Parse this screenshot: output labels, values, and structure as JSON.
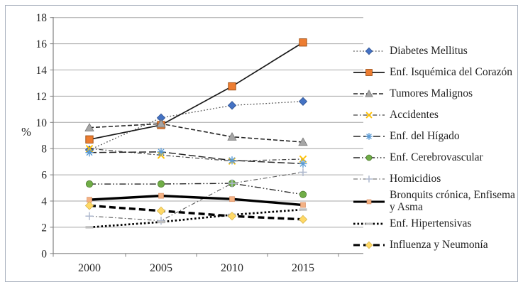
{
  "chart_data": {
    "type": "line",
    "title": "",
    "ylabel": "%",
    "xlabel": "",
    "ylim": [
      0,
      18
    ],
    "ytick_step": 2,
    "yticks": [
      0,
      2,
      4,
      6,
      8,
      10,
      12,
      14,
      16,
      18
    ],
    "x": [
      "2000",
      "2005",
      "2010",
      "2015"
    ],
    "grid": true,
    "legend_position": "right",
    "axis_color": "#808080",
    "gridline_color": "#a6a6a6",
    "tick_label_color": "#262626",
    "series": [
      {
        "name": "Diabetes Mellitus",
        "values": [
          7.9,
          10.35,
          11.3,
          11.6
        ],
        "marker": "diamond",
        "marker_color": "#4472c4",
        "marker_border": "#2f528f",
        "line_color": "#595959",
        "line_style": "dot",
        "line_width": 1.3
      },
      {
        "name": "Enf. Isquémica del Corazón",
        "values": [
          8.7,
          9.8,
          12.75,
          16.1
        ],
        "marker": "square",
        "marker_color": "#ed7d31",
        "marker_border": "#9c4b0f",
        "line_color": "#1a1a1a",
        "line_style": "solid",
        "line_width": 1.7
      },
      {
        "name": "Tumores Malignos",
        "values": [
          9.6,
          9.9,
          8.9,
          8.5
        ],
        "marker": "triangle",
        "marker_color": "#a5a5a5",
        "marker_border": "#747474",
        "line_color": "#262626",
        "line_style": "dash",
        "line_width": 1.6
      },
      {
        "name": "Accidentes",
        "values": [
          8.0,
          7.5,
          7.05,
          7.2
        ],
        "marker": "xmark",
        "marker_color": "#ffc000",
        "marker_border": "#bf9000",
        "line_color": "#404040",
        "line_style": "dashdot",
        "line_width": 1.2
      },
      {
        "name": "Enf. del Hígado",
        "values": [
          7.7,
          7.75,
          7.1,
          6.85
        ],
        "marker": "asterisk",
        "marker_color": "#5b9bd5",
        "marker_border": "#41719c",
        "line_color": "#262626",
        "line_style": "longdash",
        "line_width": 1.5
      },
      {
        "name": "Enf. Cerebrovascular",
        "values": [
          5.3,
          5.3,
          5.35,
          4.5
        ],
        "marker": "circle",
        "marker_color": "#70ad47",
        "marker_border": "#507e32",
        "line_color": "#262626",
        "line_style": "dashdotdot",
        "line_width": 1.4
      },
      {
        "name": "Homicidios",
        "values": [
          2.85,
          2.5,
          5.35,
          6.2
        ],
        "marker": "plus",
        "marker_color": "#aeb8ce",
        "marker_border": "#aeb8ce",
        "line_color": "#595959",
        "line_style": "dashdot",
        "line_width": 1.1
      },
      {
        "name": "Bronquits crónica, Enfisema y Asma",
        "values": [
          4.1,
          4.4,
          4.15,
          3.7
        ],
        "marker": "smallsquare",
        "marker_color": "#f4b183",
        "marker_border": "#d89067",
        "line_color": "#000000",
        "line_style": "solid",
        "line_width": 3.4
      },
      {
        "name": "Enf. Hipertensivas",
        "values": [
          2.0,
          2.4,
          2.95,
          3.35
        ],
        "marker": "hdash",
        "marker_color": "#bfbfbf",
        "marker_border": "#bfbfbf",
        "line_color": "#000000",
        "line_style": "heavydot",
        "line_width": 2.7
      },
      {
        "name": "Influenza y Neumonía",
        "values": [
          3.65,
          3.25,
          2.85,
          2.6
        ],
        "marker": "diamond",
        "marker_color": "#ffd966",
        "marker_border": "#d8b64e",
        "line_color": "#000000",
        "line_style": "heavydash",
        "line_width": 3.4
      }
    ]
  }
}
